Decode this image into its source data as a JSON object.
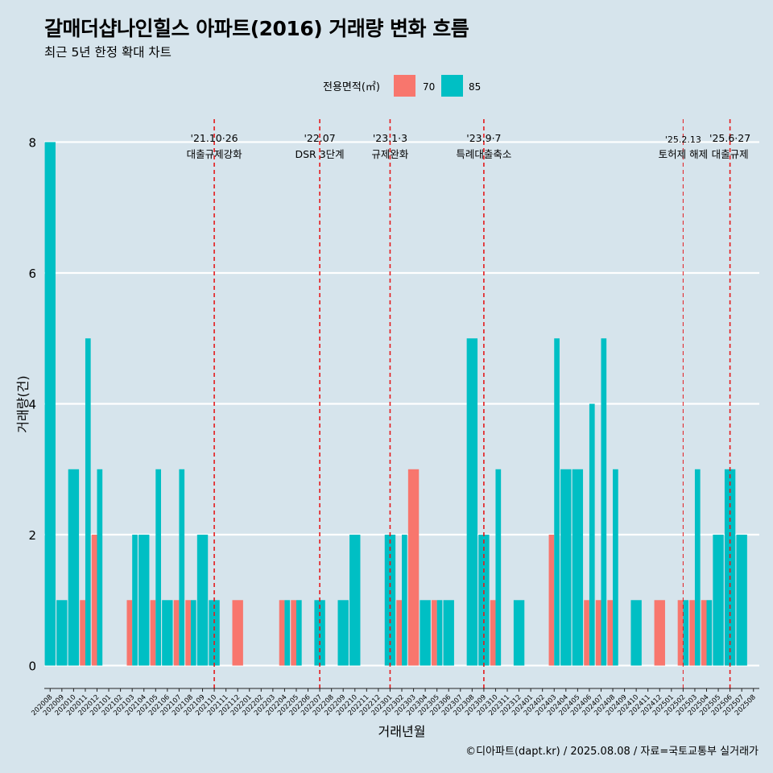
{
  "header": {
    "title": "갈매더샵나인힐스 아파트(2016) 거래량 변화 흐름",
    "subtitle": "최근 5년 한정 확대 차트"
  },
  "caption": "©디아파트(dapt.kr) / 2025.08.08 / 자료=국토교통부 실거래가",
  "colors": {
    "background": "#d6e4ec",
    "gridline": "#ffffff",
    "event_line": "#e41a1c",
    "series_70": "#f8766d",
    "series_85": "#00bfc4"
  },
  "chart_data": {
    "type": "bar",
    "xlabel": "거래년월",
    "ylabel": "거래량(건)",
    "ylim": [
      -0.35,
      8.35
    ],
    "yticks": [
      0,
      2,
      4,
      6,
      8
    ],
    "grid": true,
    "legend": {
      "title": "전용면적(㎡)",
      "position": "top"
    },
    "categories": [
      "202008",
      "202009",
      "202010",
      "202011",
      "202012",
      "202101",
      "202102",
      "202103",
      "202104",
      "202105",
      "202106",
      "202107",
      "202108",
      "202109",
      "202110",
      "202111",
      "202112",
      "202201",
      "202202",
      "202203",
      "202204",
      "202205",
      "202206",
      "202207",
      "202208",
      "202209",
      "202210",
      "202211",
      "202212",
      "202301",
      "202302",
      "202303",
      "202304",
      "202305",
      "202306",
      "202307",
      "202308",
      "202309",
      "202310",
      "202311",
      "202312",
      "202401",
      "202402",
      "202403",
      "202404",
      "202405",
      "202406",
      "202407",
      "202408",
      "202409",
      "202410",
      "202411",
      "202412",
      "202501",
      "202502",
      "202503",
      "202504",
      "202505",
      "202506",
      "202507",
      "202508"
    ],
    "series": [
      {
        "name": "70",
        "color": "#f8766d",
        "values": [
          0,
          0,
          0,
          1,
          2,
          0,
          0,
          1,
          0,
          1,
          0,
          1,
          1,
          0,
          0,
          0,
          1,
          0,
          0,
          0,
          1,
          1,
          0,
          0,
          0,
          0,
          0,
          0,
          0,
          0,
          1,
          3,
          0,
          1,
          0,
          0,
          0,
          0,
          1,
          0,
          0,
          0,
          0,
          2,
          0,
          0,
          1,
          1,
          1,
          0,
          0,
          0,
          1,
          0,
          1,
          1,
          1,
          0,
          0,
          0,
          0
        ]
      },
      {
        "name": "85",
        "color": "#00bfc4",
        "values": [
          8,
          1,
          3,
          5,
          3,
          0,
          0,
          2,
          2,
          3,
          1,
          3,
          1,
          2,
          1,
          0,
          0,
          0,
          0,
          0,
          1,
          1,
          0,
          1,
          0,
          1,
          2,
          0,
          0,
          2,
          2,
          0,
          1,
          1,
          1,
          0,
          5,
          2,
          3,
          0,
          1,
          0,
          0,
          5,
          3,
          3,
          4,
          5,
          3,
          0,
          1,
          0,
          0,
          0,
          1,
          3,
          1,
          2,
          3,
          2,
          0
        ]
      }
    ],
    "annotations": [
      {
        "date": "'21.10·26",
        "label": "대출규제강화",
        "month": "202110"
      },
      {
        "date": "'22.07",
        "label": "DSR 3단계",
        "month": "202207"
      },
      {
        "date": "'23.1·3",
        "label": "규제완화",
        "month": "202301"
      },
      {
        "date": "'23.9·7",
        "label": "특례대출축소",
        "month": "202309"
      },
      {
        "date": "'25.2.13",
        "label": "토허제 해제",
        "month": "202502"
      },
      {
        "date": "'25.6·27",
        "label": "대출규제",
        "month": "202506"
      }
    ]
  }
}
